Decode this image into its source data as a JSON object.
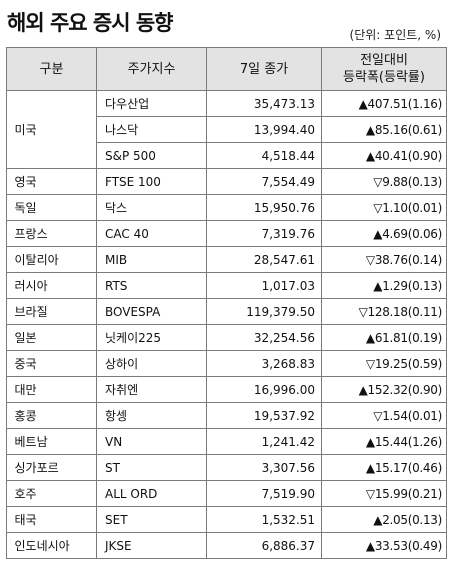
{
  "title": "해외 주요 증시 동향",
  "unit": "(단위: 포인트, %)",
  "headers": {
    "country": "구분",
    "index": "주가지수",
    "close": "7일 종가",
    "change_line1": "전일대비",
    "change_line2": "등락폭(등락률)"
  },
  "rows": [
    {
      "country": "미국",
      "index": "다우산업",
      "close": "35,473.13",
      "change": "▲407.51(1.16)"
    },
    {
      "country": "",
      "index": "나스닥",
      "close": "13,994.40",
      "change": "▲85.16(0.61)"
    },
    {
      "country": "",
      "index": "S&P 500",
      "close": "4,518.44",
      "change": "▲40.41(0.90)"
    },
    {
      "country": "영국",
      "index": "FTSE 100",
      "close": "7,554.49",
      "change": "▽9.88(0.13)"
    },
    {
      "country": "독일",
      "index": "닥스",
      "close": "15,950.76",
      "change": "▽1.10(0.01)"
    },
    {
      "country": "프랑스",
      "index": "CAC 40",
      "close": "7,319.76",
      "change": "▲4.69(0.06)"
    },
    {
      "country": "이탈리아",
      "index": "MIB",
      "close": "28,547.61",
      "change": "▽38.76(0.14)"
    },
    {
      "country": "러시아",
      "index": "RTS",
      "close": "1,017.03",
      "change": "▲1.29(0.13)"
    },
    {
      "country": "브라질",
      "index": "BOVESPA",
      "close": "119,379.50",
      "change": "▽128.18(0.11)"
    },
    {
      "country": "일본",
      "index": "닛케이225",
      "close": "32,254.56",
      "change": "▲61.81(0.19)"
    },
    {
      "country": "중국",
      "index": "상하이",
      "close": "3,268.83",
      "change": "▽19.25(0.59)"
    },
    {
      "country": "대만",
      "index": "자취엔",
      "close": "16,996.00",
      "change": "▲152.32(0.90)"
    },
    {
      "country": "홍콩",
      "index": "항셍",
      "close": "19,537.92",
      "change": "▽1.54(0.01)"
    },
    {
      "country": "베트남",
      "index": "VN",
      "close": "1,241.42",
      "change": "▲15.44(1.26)"
    },
    {
      "country": "싱가포르",
      "index": "ST",
      "close": "3,307.56",
      "change": "▲15.17(0.46)"
    },
    {
      "country": "호주",
      "index": "ALL ORD",
      "close": "7,519.90",
      "change": "▽15.99(0.21)"
    },
    {
      "country": "태국",
      "index": "SET",
      "close": "1,532.51",
      "change": "▲2.05(0.13)"
    },
    {
      "country": "인도네시아",
      "index": "JKSE",
      "close": "6,886.37",
      "change": "▲33.53(0.49)"
    }
  ]
}
